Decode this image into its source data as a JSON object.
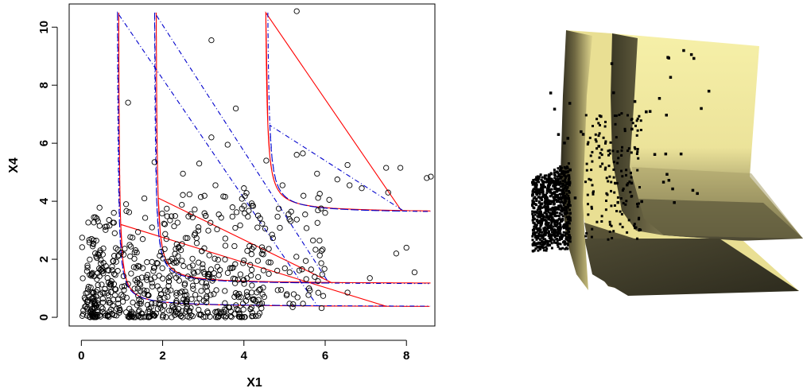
{
  "chart_data": [
    {
      "type": "scatter",
      "title": "",
      "xlabel": "X1",
      "ylabel": "X4",
      "xlim": [
        -0.3,
        8.7
      ],
      "ylim": [
        -0.3,
        10.8
      ],
      "x_ticks": [
        "0",
        "2",
        "4",
        "6",
        "8"
      ],
      "y_ticks": [
        "0",
        "2",
        "4",
        "6",
        "8",
        "10"
      ],
      "grid": false,
      "legend": "none",
      "colors": {
        "points": "#000000",
        "contour_solid": "#ff0000",
        "contour_dashed": "#0000cc"
      },
      "series": [
        {
          "style": "open-circle",
          "points": [
            [
              5.3,
              10.55
            ],
            [
              3.2,
              9.55
            ],
            [
              1.15,
              7.4
            ],
            [
              3.8,
              7.2
            ],
            [
              3.2,
              6.2
            ],
            [
              3.6,
              5.95
            ],
            [
              5.3,
              5.6
            ],
            [
              5.45,
              5.65
            ],
            [
              4.55,
              5.4
            ],
            [
              1.8,
              5.35
            ],
            [
              6.55,
              5.25
            ],
            [
              7.5,
              5.15
            ],
            [
              7.85,
              5.15
            ],
            [
              8.5,
              4.8
            ],
            [
              8.6,
              4.85
            ],
            [
              5.8,
              4.95
            ],
            [
              6.3,
              4.75
            ],
            [
              7.55,
              4.3
            ],
            [
              6.9,
              4.45
            ],
            [
              4.95,
              4.55
            ],
            [
              6.6,
              4.55
            ],
            [
              6.1,
              4.05
            ],
            [
              5.9,
              3.75
            ],
            [
              6.0,
              3.6
            ],
            [
              5.1,
              3.55
            ],
            [
              7.75,
              2.2
            ],
            [
              8.0,
              2.4
            ],
            [
              8.2,
              1.55
            ],
            [
              7.1,
              1.35
            ],
            [
              6.55,
              0.85
            ],
            [
              4.5,
              0.7
            ],
            [
              5.2,
              0.35
            ],
            [
              3.5,
              0.05
            ],
            [
              3.1,
              0.2
            ],
            [
              2.0,
              0.25
            ],
            [
              0.8,
              3.6
            ],
            [
              0.45,
              3.15
            ],
            [
              0.25,
              2.7
            ],
            [
              1.55,
              4.1
            ],
            [
              1.1,
              3.9
            ],
            [
              2.5,
              4.95
            ],
            [
              2.9,
              5.3
            ],
            [
              3.3,
              4.55
            ],
            [
              4.0,
              4.45
            ],
            [
              4.2,
              3.85
            ]
          ]
        }
      ],
      "contours": [
        {
          "style": "solid",
          "color": "red",
          "asymptote_x": 0.9,
          "asymptote_y": 0.35
        },
        {
          "style": "solid",
          "color": "red",
          "asymptote_x": 1.82,
          "asymptote_y": 1.15
        },
        {
          "style": "solid",
          "color": "red",
          "asymptote_x": 4.5,
          "asymptote_y": 3.6
        },
        {
          "style": "dash-dot",
          "color": "blue",
          "asymptote_x": 0.87,
          "asymptote_y": 0.36
        },
        {
          "style": "dash-dot",
          "color": "blue",
          "asymptote_x": 1.78,
          "asymptote_y": 1.13
        },
        {
          "style": "dash-dot",
          "color": "blue",
          "asymptote_x": 4.55,
          "asymptote_y": 3.58
        }
      ]
    }
  ],
  "rendering_3d": {
    "description": "3D perspective surface plot with shaded yellow surfaces and black point cloud",
    "colors": {
      "highlight": "#f4eda0",
      "mid": "#c7bd7a",
      "shadow": "#4a4632",
      "dark": "#2f2c1f",
      "points": "#000000"
    }
  }
}
